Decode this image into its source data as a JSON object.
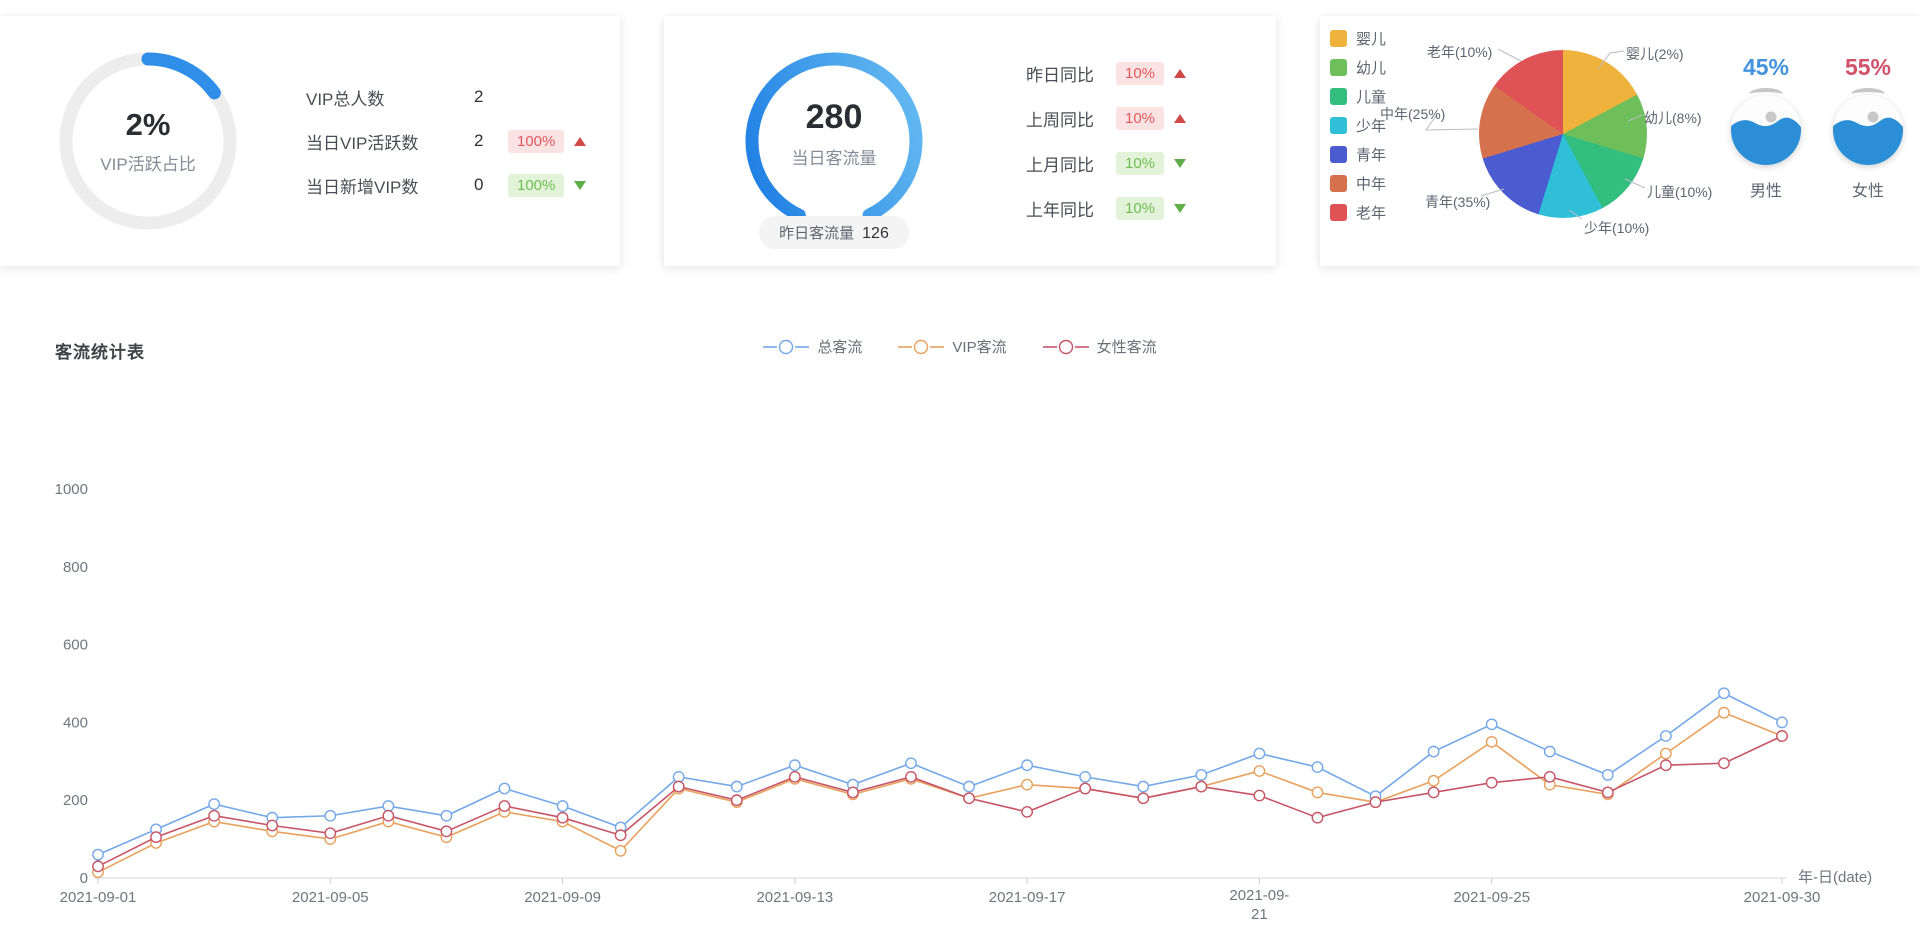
{
  "cards": {
    "vip": {
      "gauge_value": "2%",
      "gauge_label": "VIP活跃占比",
      "ring_color": "#2e8ee9",
      "ring_track": "#ededee",
      "ring_percent": 15,
      "rows": [
        {
          "label": "VIP总人数",
          "value": "2",
          "badge": "",
          "trend": ""
        },
        {
          "label": "当日VIP活跃数",
          "value": "2",
          "badge": "100%",
          "trend": "up"
        },
        {
          "label": "当日新增VIP数",
          "value": "0",
          "badge": "100%",
          "trend": "down"
        }
      ]
    },
    "traffic": {
      "gauge_value": "280",
      "gauge_label": "当日客流量",
      "footer_label": "昨日客流量",
      "footer_value": "126",
      "ring_percent": 86,
      "rows": [
        {
          "label": "昨日同比",
          "badge": "10%",
          "trend": "up"
        },
        {
          "label": "上周同比",
          "badge": "10%",
          "trend": "up"
        },
        {
          "label": "上月同比",
          "badge": "10%",
          "trend": "down"
        },
        {
          "label": "上年同比",
          "badge": "10%",
          "trend": "down"
        }
      ]
    },
    "demographics": {
      "legend": [
        {
          "label": "婴儿",
          "color": "#efb33d"
        },
        {
          "label": "幼儿",
          "color": "#6ebe5b"
        },
        {
          "label": "儿童",
          "color": "#33bd7f"
        },
        {
          "label": "少年",
          "color": "#2fc0d8"
        },
        {
          "label": "青年",
          "color": "#4a5cd0"
        },
        {
          "label": "中年",
          "color": "#d5724d"
        },
        {
          "label": "老年",
          "color": "#df5357"
        }
      ],
      "callouts": [
        "老年(10%)",
        "婴儿(2%)",
        "幼儿(8%)",
        "儿童(10%)",
        "少年(10%)",
        "青年(35%)",
        "中年(25%)"
      ],
      "gender": [
        {
          "pct": "45%",
          "label": "男性",
          "color": "#4393de"
        },
        {
          "pct": "55%",
          "label": "女性",
          "color": "#d2516b"
        }
      ]
    }
  },
  "chart": {
    "title": "客流统计表",
    "axis_name": "年-日(date)",
    "y_ticks": [
      1000,
      800,
      600,
      400,
      200,
      0
    ],
    "x_tick_labels": [
      "2021-09-01",
      "2021-09-05",
      "2021-09-09",
      "2021-09-13",
      "2021-09-17",
      "2021-09-21",
      "2021-09-25",
      "2021-09-30"
    ]
  },
  "chart_data": [
    {
      "type": "gauge",
      "title": "VIP活跃占比",
      "value": "2%"
    },
    {
      "type": "gauge",
      "title": "当日客流量",
      "value": 280,
      "note": "昨日客流量 126"
    },
    {
      "type": "pie",
      "categories": [
        "婴儿",
        "幼儿",
        "儿童",
        "少年",
        "青年",
        "中年",
        "老年"
      ],
      "values": [
        2,
        8,
        10,
        10,
        35,
        25,
        10
      ],
      "unit": "%",
      "colors": [
        "#efb33d",
        "#6ebe5b",
        "#33bd7f",
        "#2fc0d8",
        "#4a5cd0",
        "#d5724d",
        "#df5357"
      ],
      "display_angles": [
        62,
        45,
        45,
        45,
        56,
        52,
        55
      ],
      "legend_position": "left"
    },
    {
      "type": "line",
      "title": "客流统计表",
      "xlabel": "年-日(date)",
      "ylim": [
        0,
        1000
      ],
      "grid": false,
      "legend_position": "top-center",
      "x": [
        "2021-09-01",
        "2021-09-02",
        "2021-09-03",
        "2021-09-04",
        "2021-09-05",
        "2021-09-06",
        "2021-09-07",
        "2021-09-08",
        "2021-09-09",
        "2021-09-10",
        "2021-09-11",
        "2021-09-12",
        "2021-09-13",
        "2021-09-14",
        "2021-09-15",
        "2021-09-16",
        "2021-09-17",
        "2021-09-18",
        "2021-09-19",
        "2021-09-20",
        "2021-09-21",
        "2021-09-22",
        "2021-09-23",
        "2021-09-24",
        "2021-09-25",
        "2021-09-26",
        "2021-09-27",
        "2021-09-28",
        "2021-09-29",
        "2021-09-30"
      ],
      "series": [
        {
          "name": "总客流",
          "color": "#74a8e8",
          "values": [
            60,
            125,
            190,
            155,
            160,
            185,
            160,
            230,
            185,
            130,
            260,
            235,
            290,
            240,
            295,
            235,
            290,
            260,
            235,
            265,
            320,
            285,
            210,
            325,
            395,
            325,
            265,
            365,
            475,
            400
          ]
        },
        {
          "name": "VIP客流",
          "color": "#e8a15c",
          "values": [
            15,
            90,
            145,
            120,
            100,
            145,
            105,
            170,
            145,
            70,
            230,
            195,
            255,
            215,
            255,
            205,
            240,
            230,
            205,
            235,
            275,
            220,
            195,
            250,
            350,
            240,
            215,
            320,
            425,
            365
          ]
        },
        {
          "name": "女性客流",
          "color": "#c75568",
          "values": [
            30,
            105,
            160,
            135,
            115,
            160,
            120,
            185,
            155,
            110,
            235,
            200,
            260,
            220,
            260,
            205,
            170,
            230,
            205,
            235,
            212,
            155,
            195,
            220,
            245,
            260,
            220,
            290,
            295,
            365
          ]
        }
      ]
    }
  ]
}
